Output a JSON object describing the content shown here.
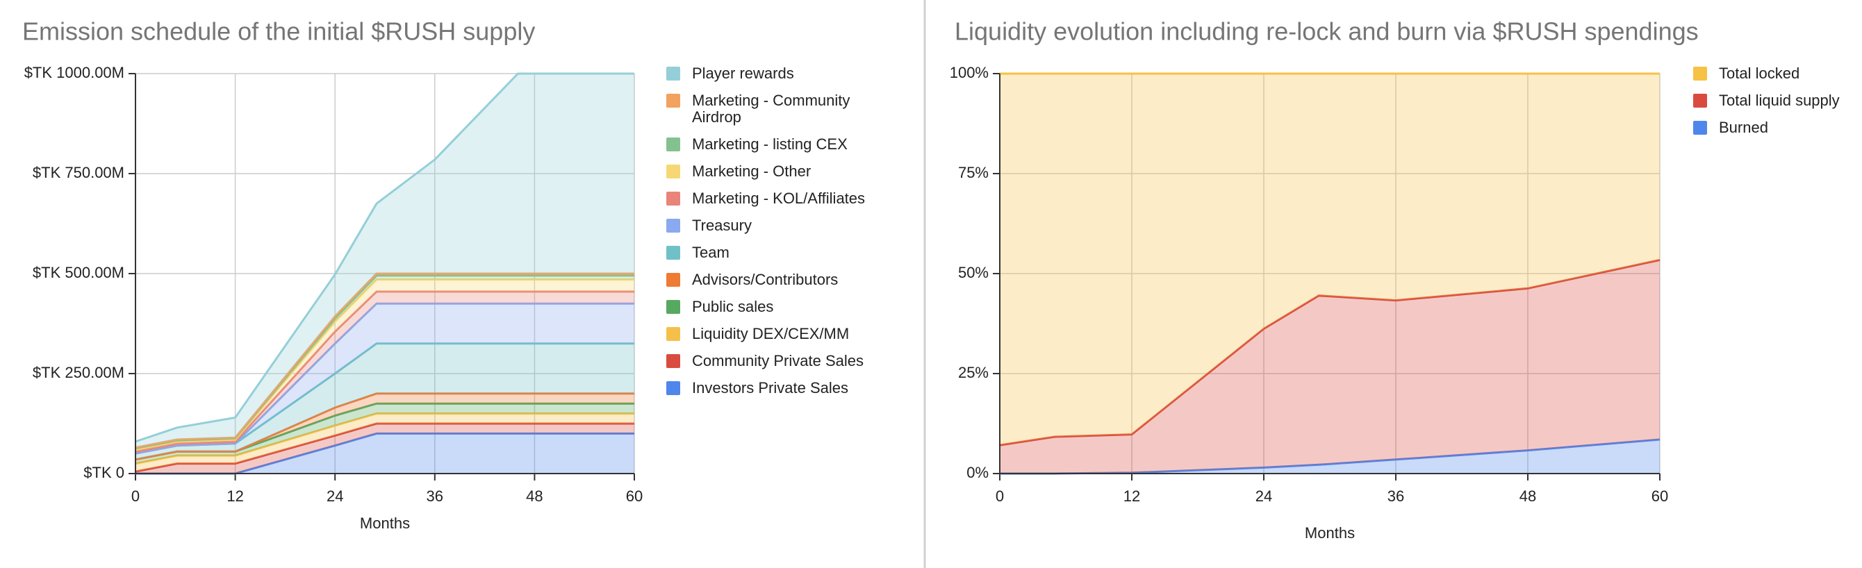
{
  "chart_data": [
    {
      "type": "area",
      "stacked": true,
      "title": "Emission schedule of the initial $RUSH supply",
      "x_label": "Months",
      "x": [
        0,
        5,
        12,
        24,
        29,
        36,
        46,
        60
      ],
      "xlim": [
        0,
        60
      ],
      "xticks": [
        0,
        12,
        24,
        36,
        48,
        60
      ],
      "ylim": [
        0,
        1000
      ],
      "yticks": [
        {
          "value": 0,
          "label": "$TK 0"
        },
        {
          "value": 250,
          "label": "$TK 250.00M"
        },
        {
          "value": 500,
          "label": "$TK 500.00M"
        },
        {
          "value": 750,
          "label": "$TK 750.00M"
        },
        {
          "value": 1000,
          "label": "$TK 1000.00M"
        }
      ],
      "grid": true,
      "legend": "right",
      "series": [
        {
          "name": "Investors Private Sales",
          "color": "#4f86ec",
          "values": [
            0,
            0,
            0,
            70,
            100,
            100,
            100,
            100
          ]
        },
        {
          "name": "Community Private Sales",
          "color": "#d94b3f",
          "values": [
            5,
            25,
            25,
            25,
            25,
            25,
            25,
            25
          ]
        },
        {
          "name": "Liquidity DEX/CEX/MM",
          "color": "#f5c04a",
          "values": [
            20,
            20,
            20,
            25,
            25,
            25,
            25,
            25
          ]
        },
        {
          "name": "Public sales",
          "color": "#57a961",
          "values": [
            10,
            10,
            10,
            25,
            25,
            25,
            25,
            25
          ]
        },
        {
          "name": "Advisors/Contributors",
          "color": "#ee7b34",
          "values": [
            0,
            0,
            0,
            20,
            25,
            25,
            25,
            25
          ]
        },
        {
          "name": "Team",
          "color": "#6fc1c7",
          "values": [
            15,
            15,
            20,
            85,
            125,
            125,
            125,
            125
          ]
        },
        {
          "name": "Treasury",
          "color": "#8aa9ef",
          "values": [
            0,
            0,
            0,
            75,
            100,
            100,
            100,
            100
          ]
        },
        {
          "name": "Marketing - KOL/Affiliates",
          "color": "#e8847a",
          "values": [
            5,
            5,
            5,
            30,
            30,
            30,
            30,
            30
          ]
        },
        {
          "name": "Marketing - Other",
          "color": "#f7d774",
          "values": [
            5,
            5,
            5,
            25,
            30,
            30,
            30,
            30
          ]
        },
        {
          "name": "Marketing - listing CEX",
          "color": "#83c28f",
          "values": [
            3,
            3,
            3,
            8,
            10,
            10,
            10,
            10
          ]
        },
        {
          "name": "Marketing - Community Airdrop",
          "color": "#f3a15e",
          "values": [
            2,
            2,
            2,
            5,
            5,
            5,
            5,
            5
          ]
        },
        {
          "name": "Player rewards",
          "color": "#94cfd8",
          "values": [
            15,
            30,
            50,
            105,
            175,
            285,
            500,
            500
          ]
        }
      ]
    },
    {
      "type": "area",
      "stacked": true,
      "title": "Liquidity evolution including re-lock and burn via $RUSH spendings",
      "x_label": "Months",
      "x": [
        0,
        5,
        12,
        24,
        29,
        36,
        48,
        60
      ],
      "xlim": [
        0,
        60
      ],
      "xticks": [
        0,
        12,
        24,
        36,
        48,
        60
      ],
      "ylim": [
        0,
        100
      ],
      "yticks": [
        {
          "value": 0,
          "label": "0%"
        },
        {
          "value": 25,
          "label": "25%"
        },
        {
          "value": 50,
          "label": "50%"
        },
        {
          "value": 75,
          "label": "75%"
        },
        {
          "value": 100,
          "label": "100%"
        }
      ],
      "grid": true,
      "legend": "right",
      "series": [
        {
          "name": "Burned",
          "color": "#4f86ec",
          "values": [
            0,
            0,
            0.2,
            1.5,
            2.2,
            3.5,
            5.8,
            8.5
          ]
        },
        {
          "name": "Total liquid supply",
          "color": "#d94b3f",
          "values": [
            7.1,
            9.2,
            9.6,
            34.7,
            42.3,
            39.8,
            40.5,
            44.9
          ]
        },
        {
          "name": "Total locked",
          "color": "#f6c144",
          "values": [
            92.9,
            90.8,
            90.2,
            63.8,
            55.5,
            56.7,
            53.7,
            46.6
          ]
        }
      ]
    }
  ]
}
